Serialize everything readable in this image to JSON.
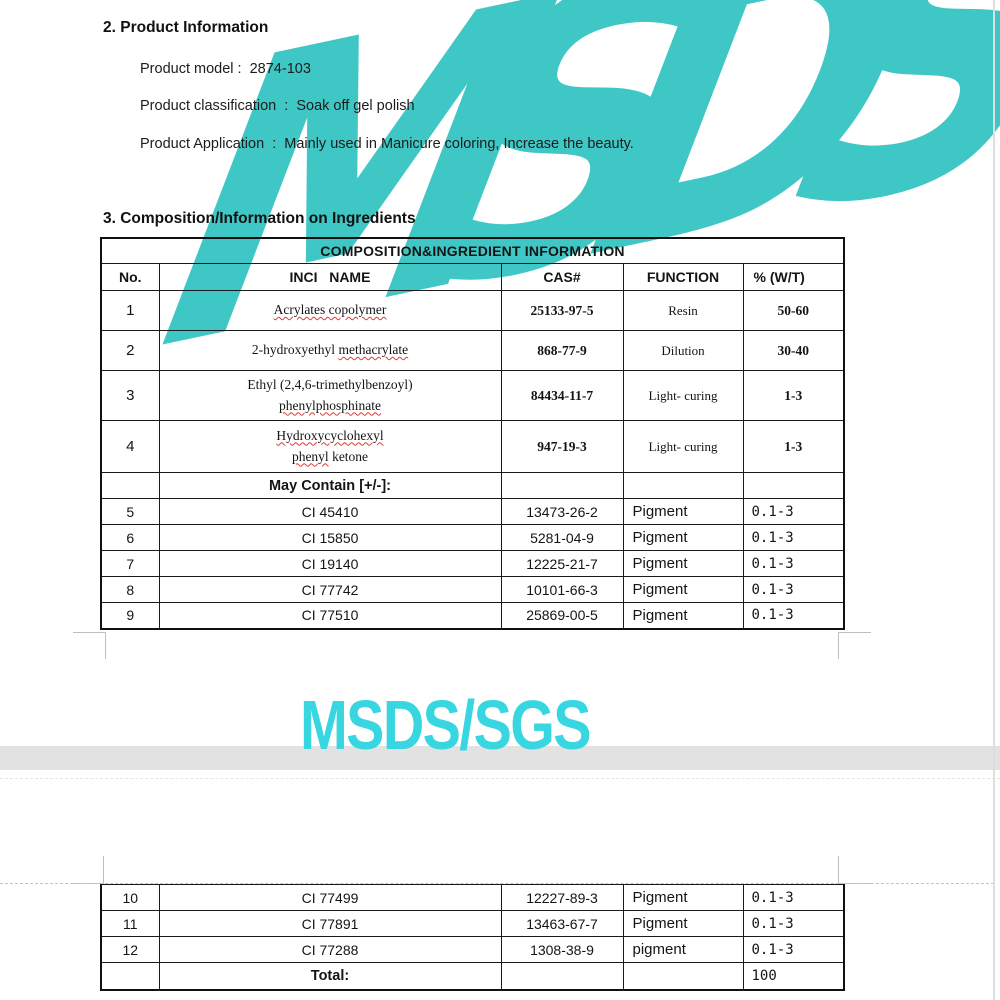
{
  "colors": {
    "watermark_teal": "#3fc7c6",
    "pagebreak_cyan": "#38d6e0"
  },
  "watermark_text": "MSDS",
  "pagebreak_label": "MSDS/SGS",
  "section2": {
    "heading": "2. Product Information",
    "lines": [
      "Product model :  2874-103",
      "Product classification  :  Soak off gel polish",
      "Product Application  :  Mainly used in Manicure coloring, Increase the beauty."
    ]
  },
  "section3_heading": "3. Composition/Information on Ingredients",
  "table1": {
    "title": "COMPOSITION&INGREDIENT INFORMATION",
    "columns": [
      "No.",
      "INCI   NAME",
      "CAS#",
      "FUNCTION",
      "% (W/T)"
    ],
    "rows": [
      {
        "kind": "chem",
        "no": "1",
        "name": [
          {
            "t": "Acrylates copolymer",
            "u": true
          }
        ],
        "cas": "25133-97-5",
        "fn": "Resin",
        "pct": "50-60"
      },
      {
        "kind": "chem",
        "no": "2",
        "name": [
          {
            "t": "2-hydroxyethyl ",
            "u": false
          },
          {
            "t": "methacrylate",
            "u": true
          }
        ],
        "cas": "868-77-9",
        "fn": "Dilution",
        "pct": "30-40"
      },
      {
        "kind": "chem",
        "no": "3",
        "name": [
          {
            "t": "Ethyl (2,4,6-trimethylbenzoyl)",
            "u": false
          },
          {
            "br": true
          },
          {
            "t": "phenylphosphinate",
            "u": true
          }
        ],
        "cas": "84434-11-7",
        "fn": "Light- curing",
        "pct": "1-3"
      },
      {
        "kind": "chem",
        "no": "4",
        "name": [
          {
            "t": "Hydroxycyclohexyl",
            "u": true
          },
          {
            "br": true
          },
          {
            "t": "phenyl",
            "u": true
          },
          {
            "t": " ketone",
            "u": false
          }
        ],
        "cas": "947-19-3",
        "fn": "Light- curing",
        "pct": "1-3"
      },
      {
        "kind": "section",
        "no": "",
        "name": "May Contain [+/-]:",
        "cas": "",
        "fn": "",
        "pct": ""
      },
      {
        "kind": "pigment",
        "no": "5",
        "name": "CI 45410",
        "cas": "13473-26-2",
        "fn": "Pigment",
        "pct": "0.1-3"
      },
      {
        "kind": "pigment",
        "no": "6",
        "name": "CI 15850",
        "cas": "5281-04-9",
        "fn": "Pigment",
        "pct": "0.1-3"
      },
      {
        "kind": "pigment",
        "no": "7",
        "name": "CI 19140",
        "cas": "12225-21-7",
        "fn": "Pigment",
        "pct": "0.1-3"
      },
      {
        "kind": "pigment",
        "no": "8",
        "name": "CI 77742",
        "cas": "10101-66-3",
        "fn": "Pigment",
        "pct": "0.1-3"
      },
      {
        "kind": "pigment",
        "no": "9",
        "name": "CI 77510",
        "cas": "25869-00-5",
        "fn": "Pigment",
        "pct": "0.1-3"
      }
    ]
  },
  "table2": {
    "rows": [
      {
        "kind": "pigment",
        "no": "10",
        "name": "CI 77499",
        "cas": "12227-89-3",
        "fn": "Pigment",
        "pct": "0.1-3"
      },
      {
        "kind": "pigment",
        "no": "11",
        "name": "CI 77891",
        "cas": "13463-67-7",
        "fn": "Pigment",
        "pct": "0.1-3"
      },
      {
        "kind": "pigment",
        "no": "12",
        "name": "CI 77288",
        "cas": "1308-38-9",
        "fn": "pigment",
        "pct": "0.1-3"
      },
      {
        "kind": "total",
        "no": "",
        "name": "Total:",
        "cas": "",
        "fn": "",
        "pct": "100"
      }
    ]
  }
}
